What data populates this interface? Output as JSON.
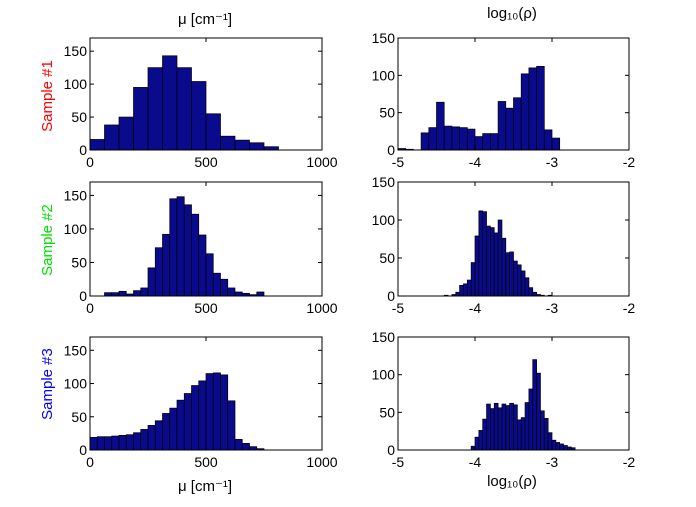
{
  "figure": {
    "top_label_left": "μ [cm⁻¹]",
    "top_label_right": "log₁₀(ρ)",
    "colors": {
      "bar_fill": "#0a0a8c",
      "bar_edge": "#000000",
      "axes": "#000000"
    }
  },
  "rows": [
    {
      "label": "Sample #1",
      "color": "#ff0000"
    },
    {
      "label": "Sample #2",
      "color": "#00e000"
    },
    {
      "label": "Sample #3",
      "color": "#0000ff"
    }
  ],
  "chart_data": [
    {
      "type": "bar",
      "panel": "sample1-mu",
      "xlim": [
        0,
        1000
      ],
      "ylim": [
        0,
        170
      ],
      "xticks": [
        0,
        500,
        1000
      ],
      "yticks": [
        0,
        50,
        100,
        150
      ],
      "bin_width": 62.5,
      "bin_starts": [
        0,
        62.5,
        125,
        187.5,
        250,
        312.5,
        375,
        437.5,
        500,
        562.5,
        625,
        687.5,
        750
      ],
      "values": [
        16,
        38,
        50,
        95,
        125,
        143,
        125,
        104,
        55,
        21,
        15,
        11,
        5
      ]
    },
    {
      "type": "bar",
      "panel": "sample1-rho",
      "xlim": [
        -5,
        -2
      ],
      "ylim": [
        0,
        150
      ],
      "xticks": [
        -5,
        -4,
        -3,
        -2
      ],
      "yticks": [
        0,
        50,
        100,
        150
      ],
      "bin_width": 0.1,
      "bin_starts": [
        -5.0,
        -4.9,
        -4.8,
        -4.7,
        -4.6,
        -4.5,
        -4.4,
        -4.3,
        -4.2,
        -4.1,
        -4.0,
        -3.9,
        -3.8,
        -3.7,
        -3.6,
        -3.5,
        -3.4,
        -3.3,
        -3.2,
        -3.1,
        -3.0,
        -2.9
      ],
      "values": [
        2,
        1,
        0,
        23,
        30,
        64,
        32,
        31,
        30,
        28,
        18,
        22,
        22,
        65,
        56,
        70,
        102,
        110,
        112,
        27,
        16,
        0
      ]
    },
    {
      "type": "bar",
      "panel": "sample2-mu",
      "xlim": [
        0,
        1000
      ],
      "ylim": [
        0,
        170
      ],
      "xticks": [
        0,
        500,
        1000
      ],
      "yticks": [
        0,
        50,
        100,
        150
      ],
      "bin_width": 31.25,
      "bin_starts": [
        62.5,
        93.75,
        125,
        156.25,
        187.5,
        218.75,
        250,
        281.25,
        312.5,
        343.75,
        375,
        406.25,
        437.5,
        468.75,
        500,
        531.25,
        562.5,
        593.75,
        625,
        656.25,
        687.5,
        718.75
      ],
      "values": [
        5,
        5,
        7,
        3,
        8,
        12,
        42,
        72,
        92,
        145,
        148,
        136,
        122,
        91,
        63,
        34,
        25,
        12,
        6,
        4,
        2,
        6
      ]
    },
    {
      "type": "bar",
      "panel": "sample2-rho",
      "xlim": [
        -5,
        -2
      ],
      "ylim": [
        0,
        150
      ],
      "xticks": [
        -5,
        -4,
        -3,
        -2
      ],
      "yticks": [
        0,
        50,
        100,
        150
      ],
      "bin_width": 0.05,
      "bin_starts": [
        -4.45,
        -4.4,
        -4.35,
        -4.3,
        -4.25,
        -4.2,
        -4.15,
        -4.1,
        -4.05,
        -4.0,
        -3.95,
        -3.9,
        -3.85,
        -3.8,
        -3.75,
        -3.7,
        -3.65,
        -3.6,
        -3.55,
        -3.5,
        -3.45,
        -3.4,
        -3.35,
        -3.3,
        -3.25,
        -3.2,
        -3.15,
        -3.1,
        -3.05
      ],
      "values": [
        0,
        1,
        0,
        2,
        5,
        14,
        16,
        21,
        44,
        79,
        112,
        111,
        92,
        90,
        83,
        100,
        76,
        57,
        58,
        46,
        41,
        33,
        24,
        11,
        5,
        2,
        1,
        0,
        1
      ]
    },
    {
      "type": "bar",
      "panel": "sample3-mu",
      "xlim": [
        0,
        1000
      ],
      "ylim": [
        0,
        170
      ],
      "xticks": [
        0,
        500,
        1000
      ],
      "yticks": [
        0,
        50,
        100,
        150
      ],
      "bin_width": 31.25,
      "bin_starts": [
        0,
        31.25,
        62.5,
        93.75,
        125,
        156.25,
        187.5,
        218.75,
        250,
        281.25,
        312.5,
        343.75,
        375,
        406.25,
        437.5,
        468.75,
        500,
        531.25,
        562.5,
        593.75,
        625,
        656.25,
        687.5,
        718.75
      ],
      "values": [
        19,
        20,
        20,
        21,
        22,
        23,
        26,
        31,
        37,
        44,
        55,
        63,
        75,
        85,
        97,
        104,
        115,
        116,
        113,
        74,
        16,
        10,
        5,
        2
      ]
    },
    {
      "type": "bar",
      "panel": "sample3-rho",
      "xlim": [
        -5,
        -2
      ],
      "ylim": [
        0,
        150
      ],
      "xticks": [
        -5,
        -4,
        -3,
        -2
      ],
      "yticks": [
        0,
        50,
        100,
        150
      ],
      "bin_width": 0.05,
      "bin_starts": [
        -4.05,
        -4.0,
        -3.95,
        -3.9,
        -3.85,
        -3.8,
        -3.75,
        -3.7,
        -3.65,
        -3.6,
        -3.55,
        -3.5,
        -3.45,
        -3.4,
        -3.35,
        -3.3,
        -3.25,
        -3.2,
        -3.15,
        -3.1,
        -3.05,
        -3.0,
        -2.95,
        -2.9,
        -2.85,
        -2.8,
        -2.75,
        -2.7
      ],
      "values": [
        5,
        17,
        26,
        41,
        61,
        55,
        62,
        56,
        61,
        59,
        62,
        60,
        40,
        43,
        63,
        81,
        120,
        102,
        52,
        42,
        23,
        13,
        10,
        8,
        6,
        4,
        3,
        0
      ]
    }
  ]
}
